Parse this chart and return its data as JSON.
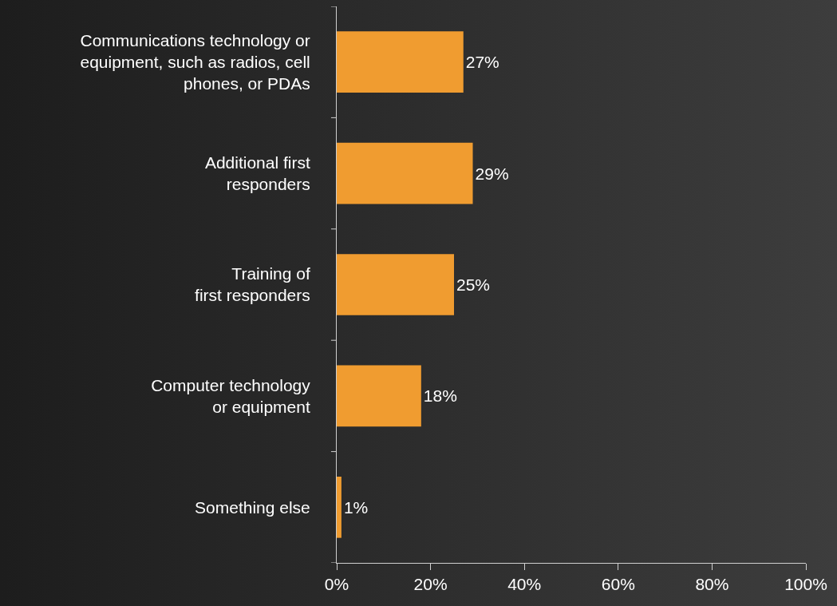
{
  "chart_data": {
    "type": "bar",
    "orientation": "horizontal",
    "categories": [
      "Communications technology or\nequipment, such as radios, cell\nphones, or PDAs",
      "Additional first\nresponders",
      "Training of\nfirst responders",
      "Computer technology\nor equipment",
      "Something else"
    ],
    "values": [
      27,
      29,
      25,
      18,
      1
    ],
    "value_labels": [
      "27%",
      "29%",
      "25%",
      "18%",
      "1%"
    ],
    "color": "#f09c30",
    "xlim": [
      0,
      100
    ],
    "xticks": [
      {
        "value": 0,
        "label": "0%"
      },
      {
        "value": 20,
        "label": "20%"
      },
      {
        "value": 40,
        "label": "40%"
      },
      {
        "value": 60,
        "label": "60%"
      },
      {
        "value": 80,
        "label": "80%"
      },
      {
        "value": 100,
        "label": "100%"
      }
    ],
    "grid": false
  }
}
